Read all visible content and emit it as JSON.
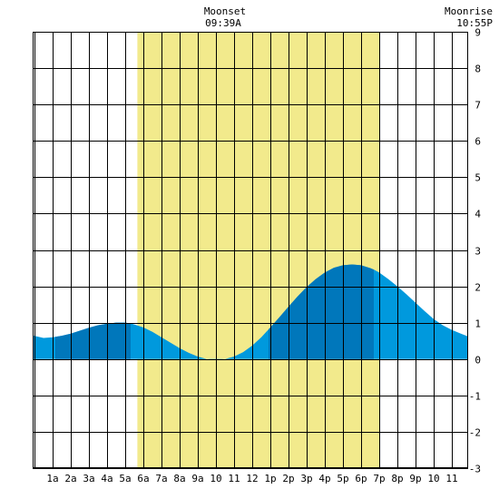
{
  "chart_data": {
    "type": "area",
    "title": "",
    "xlabel": "",
    "ylabel": "",
    "x_tick_labels": [
      "1a",
      "2a",
      "3a",
      "4a",
      "5a",
      "6a",
      "7a",
      "8a",
      "9a",
      "10",
      "11",
      "12",
      "1p",
      "2p",
      "3p",
      "4p",
      "5p",
      "6p",
      "7p",
      "8p",
      "9p",
      "10",
      "11"
    ],
    "xlim": [
      -0.1,
      23.9
    ],
    "ylim": [
      -3,
      9
    ],
    "y_ticks": [
      9,
      8,
      7,
      6,
      5,
      4,
      3,
      2,
      1,
      0,
      -1,
      -2,
      -3
    ],
    "grid": true,
    "daylight_band": {
      "start_hour": 5.67,
      "end_hour": 19.0
    },
    "annotations": [
      {
        "line1": "Moonset",
        "line2": "09:39A",
        "hour": 9.65
      },
      {
        "line1": "Moonrise",
        "line2": "10:55P",
        "hour": 22.9
      }
    ],
    "series": [
      {
        "x": [
          -0.1,
          0.5,
          1.0,
          1.5,
          2.0,
          2.5,
          3.0,
          3.5,
          4.0,
          4.5,
          5.0,
          5.3,
          5.5,
          6.0,
          6.5,
          7.0,
          7.5,
          8.0,
          8.5,
          9.0,
          9.5,
          10.0,
          10.5,
          11.0,
          11.5,
          12.0,
          12.5,
          13.0,
          13.5,
          14.0,
          14.5,
          15.0,
          15.5,
          16.0,
          16.5,
          17.0,
          17.5,
          18.0,
          18.5,
          18.7,
          19.0,
          19.5,
          20.0,
          20.5,
          21.0,
          21.5,
          22.0,
          22.5,
          23.0,
          23.5,
          23.9
        ],
        "y": [
          0.65,
          0.58,
          0.6,
          0.64,
          0.7,
          0.78,
          0.86,
          0.93,
          0.97,
          1.0,
          1.0,
          0.98,
          0.95,
          0.87,
          0.75,
          0.6,
          0.45,
          0.3,
          0.17,
          0.07,
          0.0,
          -0.02,
          0.0,
          0.07,
          0.19,
          0.37,
          0.6,
          0.87,
          1.15,
          1.44,
          1.72,
          1.98,
          2.2,
          2.38,
          2.51,
          2.58,
          2.6,
          2.58,
          2.5,
          2.46,
          2.38,
          2.2,
          2.0,
          1.78,
          1.55,
          1.32,
          1.1,
          0.93,
          0.8,
          0.7,
          0.62
        ]
      }
    ],
    "dark_segments": [
      {
        "start_hour": 1.15,
        "end_hour": 5.3
      },
      {
        "start_hour": 12.9,
        "end_hour": 18.7
      }
    ],
    "colors": {
      "tide": "#0099dd",
      "tide_dark": "#0077bb",
      "daylight": "#f2ea8c",
      "grid": "#000000",
      "background": "#ffffff"
    }
  }
}
